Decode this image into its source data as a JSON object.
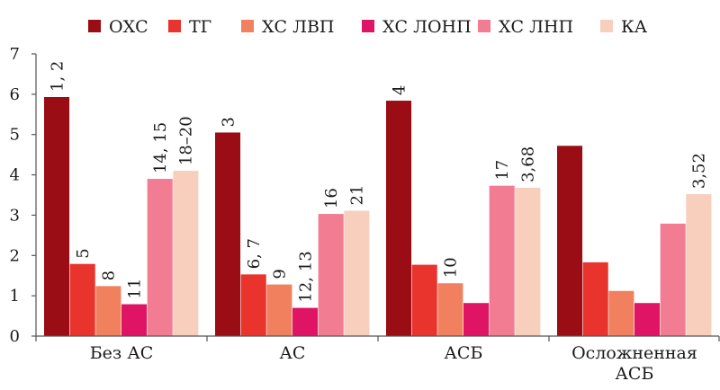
{
  "chart_data": {
    "type": "bar",
    "categories": [
      "Без АС",
      "АС",
      "АСБ",
      "Осложненная АСБ"
    ],
    "series": [
      {
        "name": "ОХС",
        "color": "#9b0d14",
        "values": [
          5.93,
          5.05,
          5.84,
          4.72
        ],
        "labels": [
          "1, 2",
          "3",
          "4",
          ""
        ]
      },
      {
        "name": "ТГ",
        "color": "#e8342c",
        "values": [
          1.79,
          1.53,
          1.77,
          1.83
        ],
        "labels": [
          "5",
          "6, 7",
          "",
          ""
        ]
      },
      {
        "name": "ХС ЛВП",
        "color": "#f0805e",
        "values": [
          1.24,
          1.28,
          1.31,
          1.12
        ],
        "labels": [
          "8",
          "9",
          "10",
          ""
        ]
      },
      {
        "name": "ХС ЛОНП",
        "color": "#df1464",
        "values": [
          0.79,
          0.7,
          0.82,
          0.82
        ],
        "labels": [
          "11",
          "12, 13",
          "",
          ""
        ]
      },
      {
        "name": "ХС ЛНП",
        "color": "#f27c92",
        "values": [
          3.9,
          3.03,
          3.73,
          2.79
        ],
        "labels": [
          "14, 15",
          "16",
          "17",
          ""
        ]
      },
      {
        "name": "КА",
        "color": "#f8cfbd",
        "values": [
          4.1,
          3.11,
          3.68,
          3.52
        ],
        "labels": [
          "18–20",
          "21",
          "3,68",
          "3,52"
        ]
      }
    ],
    "yticks": [
      "0",
      "1",
      "2",
      "3",
      "4",
      "5",
      "6",
      "7"
    ],
    "ylim": [
      0,
      7
    ],
    "grid": false,
    "legend_position": "top"
  }
}
